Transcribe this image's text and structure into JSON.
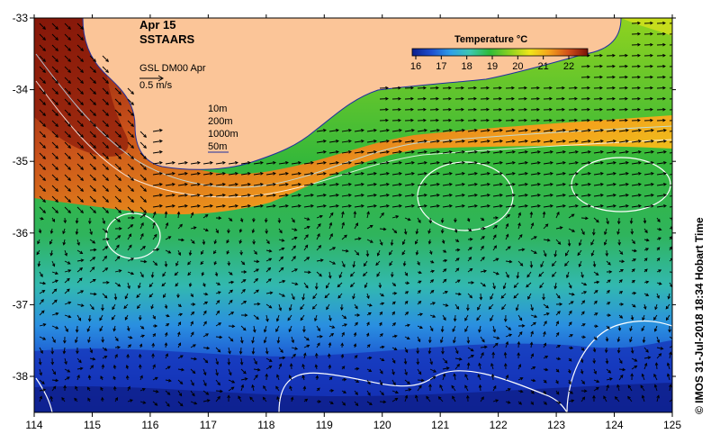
{
  "header": {
    "date": "Apr 15",
    "product": "SSTAARS"
  },
  "current_legend": {
    "source": "GSL DM00 Apr",
    "scale": "0.5 m/s"
  },
  "isobath_legend": {
    "items": [
      "10m",
      "200m",
      "1000m",
      "50m"
    ]
  },
  "colorbar": {
    "title": "Temperature °C",
    "ticks": [
      "16",
      "17",
      "18",
      "19",
      "20",
      "21",
      "22"
    ],
    "colors": [
      "#0b1f8c",
      "#1f4fcf",
      "#2fa0e8",
      "#3ec8b0",
      "#2dbb3a",
      "#8fd21f",
      "#f0e61a",
      "#f4a21c",
      "#d2501a",
      "#7a1208"
    ]
  },
  "axes": {
    "x_ticks": [
      "114",
      "115",
      "116",
      "117",
      "118",
      "119",
      "120",
      "121",
      "122",
      "123",
      "124",
      "125"
    ],
    "y_ticks": [
      "-33",
      "-34",
      "-35",
      "-36",
      "-37",
      "-38"
    ]
  },
  "credit": "©  IMOS 31-Jul-2018 18:34 Hobart Time",
  "colors": {
    "land": "#fbc598",
    "warm_current": "#c8501a",
    "shelf": "#8fd21f",
    "offshore": "#2dbb3a",
    "south": "#1f4fcf"
  }
}
